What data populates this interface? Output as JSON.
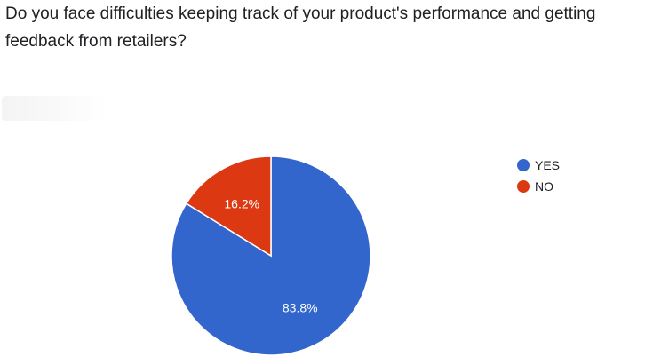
{
  "question": "Do you face difficulties keeping track of your product's performance and getting feedback from retailers?",
  "chart_data": {
    "type": "pie",
    "title": "",
    "slices": [
      {
        "label": "YES",
        "value": 83.8,
        "display": "83.8%",
        "color": "#3366cc"
      },
      {
        "label": "NO",
        "value": 16.2,
        "display": "16.2%",
        "color": "#dc3912"
      }
    ],
    "start_angle_deg": 90,
    "direction": "clockwise",
    "legend_position": "right"
  }
}
